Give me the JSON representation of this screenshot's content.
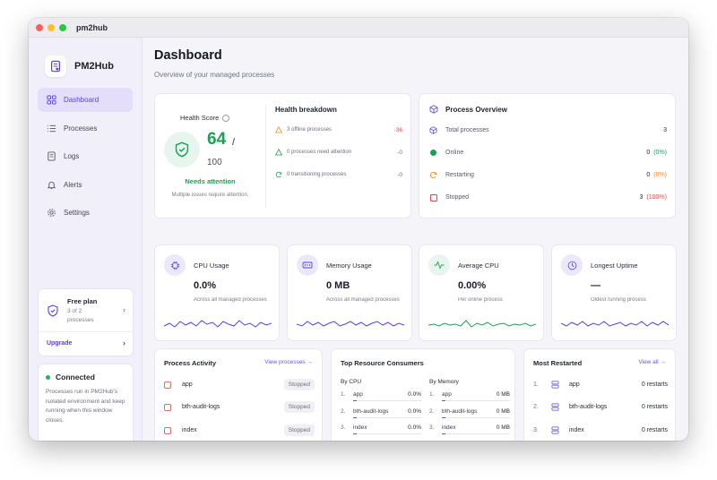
{
  "window": {
    "title": "pm2hub"
  },
  "sidebar": {
    "brand": "PM2Hub",
    "items": [
      {
        "label": "Dashboard",
        "icon": "grid-icon",
        "active": true
      },
      {
        "label": "Processes",
        "icon": "list-icon",
        "active": false
      },
      {
        "label": "Logs",
        "icon": "document-icon",
        "active": false
      },
      {
        "label": "Alerts",
        "icon": "bell-icon",
        "active": false
      },
      {
        "label": "Settings",
        "icon": "gear-icon",
        "active": false
      }
    ],
    "plan": {
      "title": "Free plan",
      "usage": "3 of 2 processes",
      "upgrade": "Upgrade"
    },
    "connection": {
      "status": "Connected",
      "text": "Processes run in PM2Hub's isolated environment and keep running when this window closes."
    }
  },
  "header": {
    "title": "Dashboard",
    "subtitle": "Overview of your managed processes"
  },
  "health": {
    "label": "Health Score",
    "score": "64",
    "slash": "/",
    "total": "100",
    "status": "Needs attention",
    "note": "Multiple issues require attention.",
    "breakdown_title": "Health breakdown",
    "breakdown": [
      {
        "text": "3 offline processes",
        "value": "-36",
        "color": "#e0474b"
      },
      {
        "text": "0 processes need attention",
        "value": "-0",
        "color": "#6d6f7f"
      },
      {
        "text": "0 transitioning processes",
        "value": "-0",
        "color": "#6d6f7f"
      }
    ]
  },
  "overview": {
    "title": "Process Overview",
    "rows": [
      {
        "label": "Total processes",
        "value": "3",
        "pct": ""
      },
      {
        "label": "Online",
        "value": "0",
        "pct": "(0%)"
      },
      {
        "label": "Restarting",
        "value": "0",
        "pct": "(0%)"
      },
      {
        "label": "Stopped",
        "value": "3",
        "pct": "(100%)"
      }
    ]
  },
  "metrics": [
    {
      "title": "CPU Usage",
      "value": "0.0%",
      "sub": "Across all managed processes",
      "color": "#5b3fd1"
    },
    {
      "title": "Memory Usage",
      "value": "0 MB",
      "sub": "Across all managed processes",
      "color": "#5b3fd1"
    },
    {
      "title": "Average CPU",
      "value": "0.00%",
      "sub": "Per online process",
      "color": "#1f9d58"
    },
    {
      "title": "Longest Uptime",
      "value": "—",
      "sub": "Oldest running process",
      "color": "#5b3fd1"
    }
  ],
  "activity": {
    "title": "Process Activity",
    "link": "View processes →",
    "rows": [
      {
        "name": "app",
        "status": "Stopped"
      },
      {
        "name": "bth-audit-logs",
        "status": "Stopped"
      },
      {
        "name": "index",
        "status": "Stopped"
      }
    ]
  },
  "consumers": {
    "title": "Top Resource Consumers",
    "cpu_header": "By CPU",
    "mem_header": "By Memory",
    "cpu": [
      {
        "n": "1.",
        "name": "app",
        "value": "0.0%"
      },
      {
        "n": "2.",
        "name": "bth-audit-logs",
        "value": "0.0%"
      },
      {
        "n": "3.",
        "name": "index",
        "value": "0.0%"
      }
    ],
    "memory": [
      {
        "n": "1.",
        "name": "app",
        "value": "0 MB"
      },
      {
        "n": "2.",
        "name": "bth-audit-logs",
        "value": "0 MB"
      },
      {
        "n": "3.",
        "name": "index",
        "value": "0 MB"
      }
    ]
  },
  "restarted": {
    "title": "Most Restarted",
    "link": "View all →",
    "rows": [
      {
        "n": "1.",
        "name": "app",
        "value": "0 restarts"
      },
      {
        "n": "2.",
        "name": "bth-audit-logs",
        "value": "0 restarts"
      },
      {
        "n": "3.",
        "name": "index",
        "value": "0 restarts"
      }
    ]
  },
  "colors": {
    "accent": "#5b3fd1",
    "success": "#1f9d58",
    "danger": "#e0474b",
    "warning": "#f08a24"
  }
}
